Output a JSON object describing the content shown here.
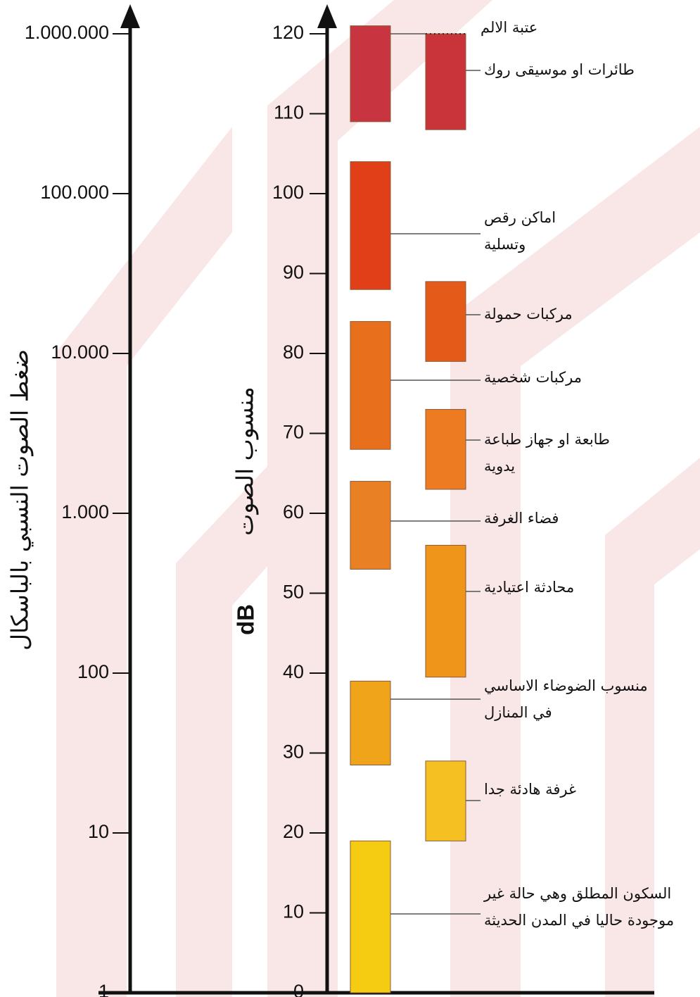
{
  "chart_data": {
    "type": "range",
    "y_title": "منسوب الصوت",
    "y_unit": "dB",
    "ylim": [
      0,
      120
    ],
    "yticks": [
      0,
      10,
      20,
      30,
      40,
      50,
      60,
      70,
      80,
      90,
      100,
      110,
      120
    ],
    "y2_title": "ضغط الصوت النسبي بالباسكال",
    "y2lim": [
      1,
      1000000
    ],
    "y2log": true,
    "y2ticks": [
      1,
      10,
      100,
      {
        "value": 1000,
        "label": "1.000"
      },
      {
        "value": 10000,
        "label": "10.000"
      },
      {
        "value": 100000,
        "label": "100.000"
      },
      {
        "value": 1000000,
        "label": "1.000.000"
      }
    ],
    "threshold": {
      "text": "عتبة الالم",
      "value": 120
    },
    "series": [
      {
        "low": [
          109,
          88,
          68,
          53,
          28.5,
          0
        ],
        "high": [
          121,
          104,
          84,
          64,
          39,
          19
        ],
        "colors": [
          "#c8343f",
          "#e03f17",
          "#e8701d",
          "#e98024",
          "#f0a41a",
          "#f6cc12"
        ],
        "labels": [
          null,
          [
            "اماكن رقص",
            "وتسلية"
          ],
          [
            "مركبات شخصية"
          ],
          [
            "فضاء الغرفة"
          ],
          [
            "منسوب الضوضاء الاساسي",
            "في المنازل"
          ],
          [
            "السكون المطلق وهي حالة غير",
            "موجودة حاليا في المدن الحديثة"
          ]
        ]
      },
      {
        "low": [
          108,
          79,
          63,
          39.5,
          19
        ],
        "high": [
          120,
          89,
          73,
          56,
          29
        ],
        "colors": [
          "#c8343a",
          "#e35a19",
          "#ec7b21",
          "#ef961a",
          "#f5c022"
        ],
        "labels": [
          [
            "طائرات او موسيقى روك"
          ],
          [
            "مركبات حمولة"
          ],
          [
            "طابعة او جهاز طباعة",
            "يدوية"
          ],
          [
            "محادثة اعتيادية"
          ],
          [
            "غرفة هادئة جدا"
          ]
        ]
      }
    ]
  }
}
